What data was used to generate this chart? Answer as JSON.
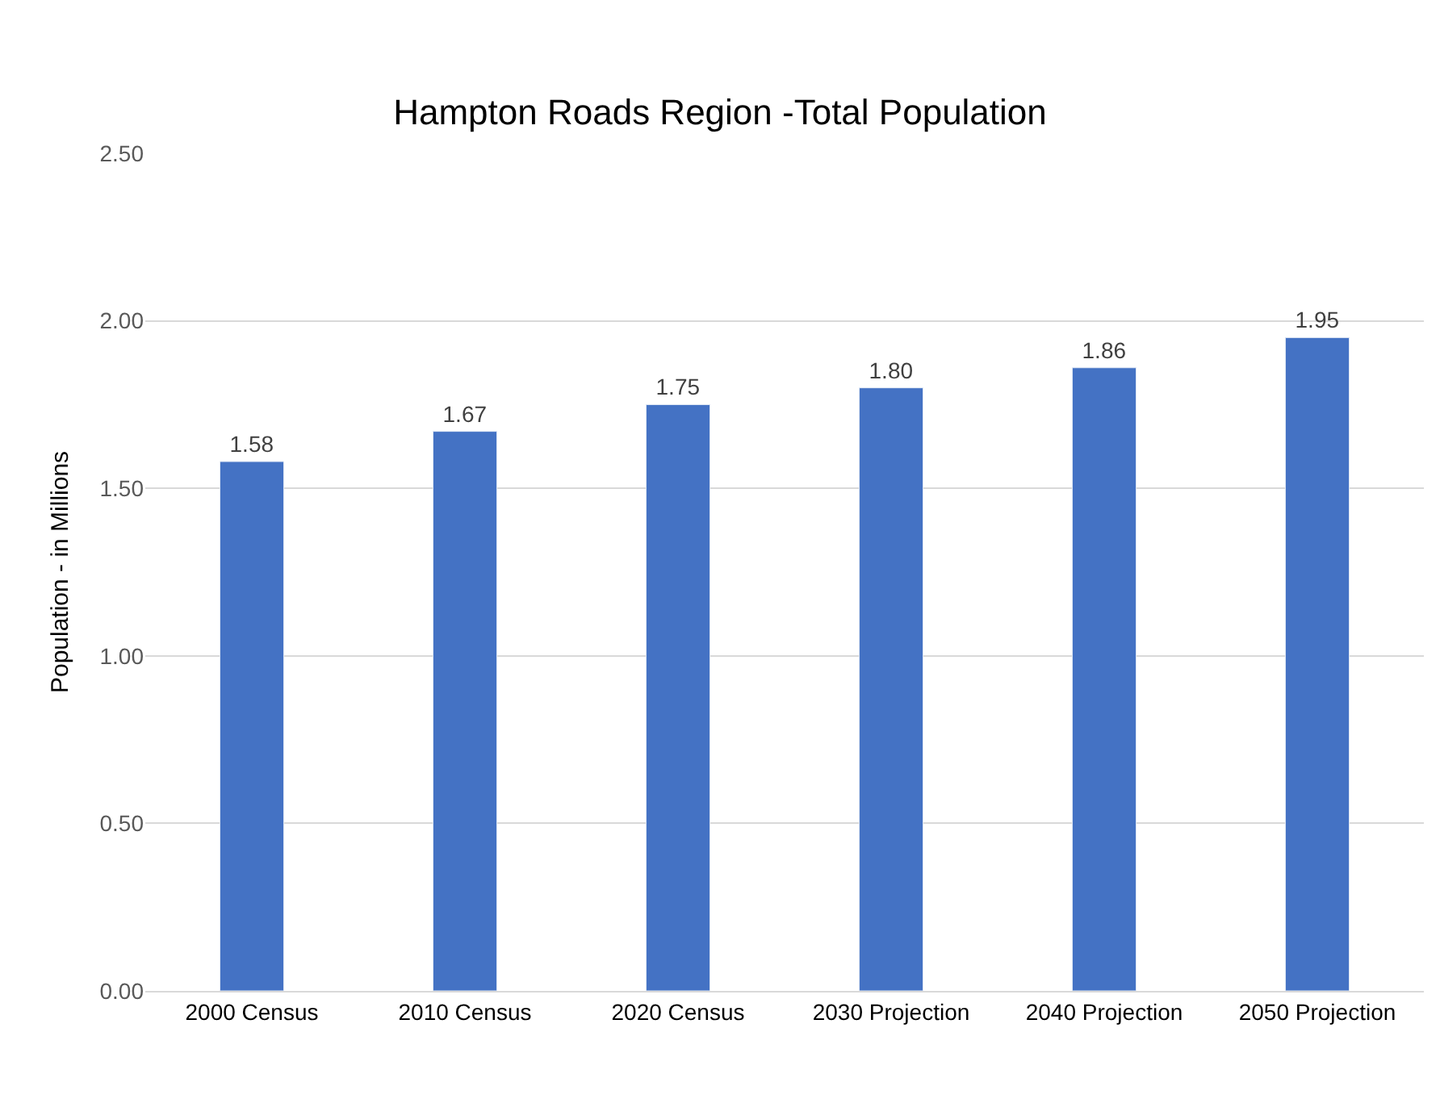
{
  "chart_data": {
    "type": "bar",
    "title": "Hampton Roads Region -Total Population",
    "ylabel": "Population - in Millions",
    "categories": [
      "2000 Census",
      "2010 Census",
      "2020 Census",
      "2030 Projection",
      "2040 Projection",
      "2050 Projection"
    ],
    "values": [
      1.58,
      1.67,
      1.75,
      1.8,
      1.86,
      1.95
    ],
    "value_labels": [
      "1.58",
      "1.67",
      "1.75",
      "1.80",
      "1.86",
      "1.95"
    ],
    "color": "#4472c4",
    "ylim": [
      0,
      2.5
    ],
    "yticks": [
      {
        "value": 0,
        "label": "0.00"
      },
      {
        "value": 0.5,
        "label": "0.50"
      },
      {
        "value": 1,
        "label": "1.00"
      },
      {
        "value": 1.5,
        "label": "1.50"
      },
      {
        "value": 2,
        "label": "2.00"
      },
      {
        "value": 2.5,
        "label": "2.50"
      }
    ],
    "grid": "y",
    "legend": false
  }
}
